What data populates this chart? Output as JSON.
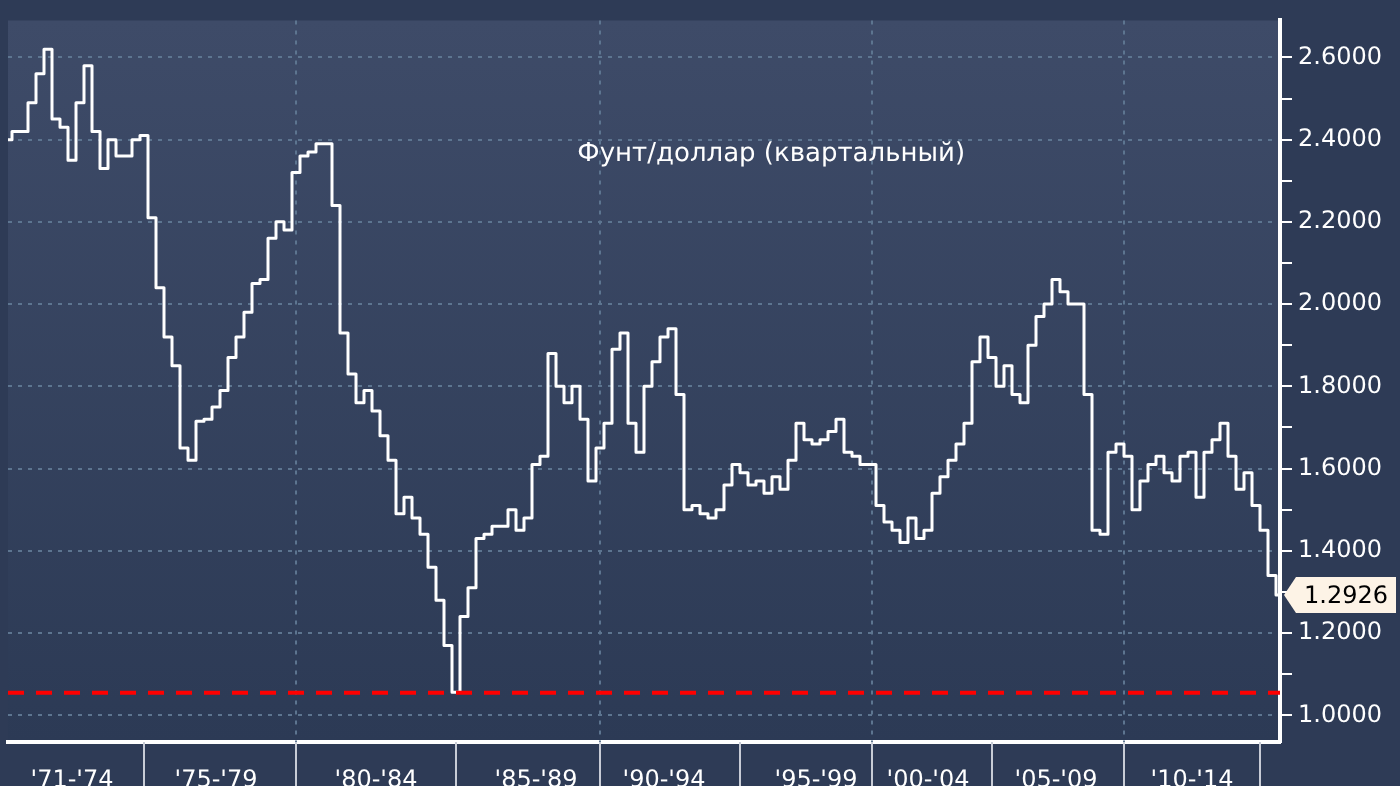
{
  "chart_data": {
    "type": "step",
    "title": "Фунт/доллар (квартальный)",
    "categories": [
      null,
      null,
      null,
      null,
      null,
      null,
      null,
      null,
      "'71-'74",
      null,
      null,
      null,
      null,
      null,
      null,
      null,
      null,
      null,
      null,
      null,
      null,
      null,
      null,
      null,
      null,
      null,
      "'75-'79",
      null,
      null,
      null,
      null,
      null,
      null,
      null,
      null,
      null,
      null,
      null,
      null,
      null,
      null,
      null,
      null,
      null,
      null,
      null,
      "'80-'84",
      null,
      null,
      null,
      null,
      null,
      null,
      null,
      null,
      null,
      null,
      null,
      null,
      null,
      null,
      null,
      null,
      null,
      null,
      null,
      "'85-'89",
      null,
      null,
      null,
      null,
      null,
      null,
      null,
      null,
      null,
      null,
      null,
      null,
      null,
      null,
      null,
      "'90-'94",
      null,
      null,
      null,
      null,
      null,
      null,
      null,
      null,
      null,
      null,
      null,
      null,
      null,
      null,
      null,
      null,
      null,
      null,
      "'95-'99",
      null,
      null,
      null,
      null,
      null,
      null,
      null,
      null,
      null,
      null,
      null,
      null,
      null,
      "'00-'04",
      null,
      null,
      null,
      null,
      null,
      null,
      null,
      null,
      null,
      null,
      null,
      null,
      null,
      null,
      null,
      "'05-'09",
      null,
      null,
      null,
      null,
      null,
      null,
      null,
      null,
      null,
      null,
      null,
      null,
      null,
      null,
      null,
      null,
      "'10-'14",
      null,
      null,
      null,
      null,
      null,
      null,
      null,
      null,
      null,
      null,
      null
    ],
    "series": [
      {
        "color": "#ffffff",
        "values": [
          2.4,
          2.42,
          2.42,
          2.49,
          2.56,
          2.62,
          2.45,
          2.43,
          2.35,
          2.49,
          2.58,
          2.42,
          2.33,
          2.4,
          2.36,
          2.36,
          2.4,
          2.41,
          2.21,
          2.04,
          1.92,
          1.85,
          1.65,
          1.62,
          1.715,
          1.72,
          1.75,
          1.79,
          1.87,
          1.92,
          1.98,
          2.05,
          2.06,
          2.16,
          2.2,
          2.18,
          2.32,
          2.36,
          2.37,
          2.39,
          2.39,
          2.24,
          1.93,
          1.83,
          1.76,
          1.79,
          1.74,
          1.68,
          1.62,
          1.49,
          1.53,
          1.48,
          1.44,
          1.36,
          1.28,
          1.17,
          1.056,
          1.24,
          1.31,
          1.43,
          1.44,
          1.46,
          1.46,
          1.5,
          1.45,
          1.48,
          1.61,
          1.63,
          1.88,
          1.8,
          1.76,
          1.8,
          1.72,
          1.57,
          1.65,
          1.71,
          1.89,
          1.93,
          1.71,
          1.64,
          1.8,
          1.86,
          1.92,
          1.94,
          1.78,
          1.5,
          1.51,
          1.49,
          1.48,
          1.5,
          1.56,
          1.61,
          1.59,
          1.56,
          1.57,
          1.54,
          1.58,
          1.55,
          1.62,
          1.71,
          1.67,
          1.66,
          1.67,
          1.69,
          1.72,
          1.64,
          1.63,
          1.61,
          1.61,
          1.51,
          1.47,
          1.45,
          1.42,
          1.48,
          1.43,
          1.45,
          1.54,
          1.58,
          1.62,
          1.66,
          1.71,
          1.86,
          1.92,
          1.87,
          1.8,
          1.85,
          1.78,
          1.76,
          1.9,
          1.97,
          2.0,
          2.06,
          2.03,
          2.0,
          2.0,
          1.78,
          1.45,
          1.44,
          1.64,
          1.66,
          1.63,
          1.5,
          1.57,
          1.61,
          1.63,
          1.59,
          1.57,
          1.63,
          1.64,
          1.53,
          1.64,
          1.67,
          1.71,
          1.63,
          1.55,
          1.59,
          1.51,
          1.45,
          1.34,
          1.2926
        ],
        "value_labels": [
          null,
          null,
          null,
          null,
          null,
          null,
          null,
          null,
          null,
          null,
          null,
          null,
          null,
          null,
          null,
          null,
          null,
          null,
          null,
          null,
          null,
          null,
          null,
          null,
          null,
          null,
          null,
          null,
          null,
          null,
          null,
          null,
          null,
          null,
          null,
          null,
          null,
          null,
          null,
          null,
          null,
          null,
          null,
          null,
          null,
          null,
          null,
          null,
          null,
          null,
          null,
          null,
          null,
          null,
          null,
          null,
          null,
          null,
          null,
          null,
          null,
          null,
          null,
          null,
          null,
          null,
          null,
          null,
          null,
          null,
          null,
          null,
          null,
          null,
          null,
          null,
          null,
          null,
          null,
          null,
          null,
          null,
          null,
          null,
          null,
          null,
          null,
          null,
          null,
          null,
          null,
          null,
          null,
          null,
          null,
          null,
          null,
          null,
          null,
          null,
          null,
          null,
          null,
          null,
          null,
          null,
          null,
          null,
          null,
          null,
          null,
          null,
          null,
          null,
          null,
          null,
          null,
          null,
          null,
          null,
          null,
          null,
          null,
          null,
          null,
          null,
          null,
          null,
          null,
          null,
          null,
          null,
          null,
          null,
          null,
          null,
          null,
          null,
          null,
          null,
          null,
          null,
          null,
          null,
          null,
          null,
          null,
          null,
          null,
          null,
          null,
          null,
          null,
          null,
          null,
          null,
          null,
          null,
          null,
          "1.2926"
        ]
      }
    ],
    "ylim": [
      0.935,
      2.69
    ],
    "yticks": [
      {
        "value": 1.0,
        "label": "1.0000"
      },
      {
        "value": 1.1,
        "label": null
      },
      {
        "value": 1.2,
        "label": "1.2000"
      },
      {
        "value": 1.3,
        "label": null
      },
      {
        "value": 1.4,
        "label": "1.4000"
      },
      {
        "value": 1.5,
        "label": null
      },
      {
        "value": 1.6,
        "label": "1.6000"
      },
      {
        "value": 1.7,
        "label": null
      },
      {
        "value": 1.8,
        "label": "1.8000"
      },
      {
        "value": 1.9,
        "label": null
      },
      {
        "value": 2.0,
        "label": "2.0000"
      },
      {
        "value": 2.1,
        "label": null
      },
      {
        "value": 2.2,
        "label": "2.2000"
      },
      {
        "value": 2.3,
        "label": null
      },
      {
        "value": 2.4,
        "label": "2.4000"
      },
      {
        "value": 2.5,
        "label": null
      },
      {
        "value": 2.6,
        "label": "2.6000"
      }
    ],
    "ref_lines": [
      {
        "axis": "y",
        "value": 1.055,
        "color": "#ff0000",
        "line_style": "dashed"
      }
    ],
    "grid": true,
    "legend": false
  }
}
